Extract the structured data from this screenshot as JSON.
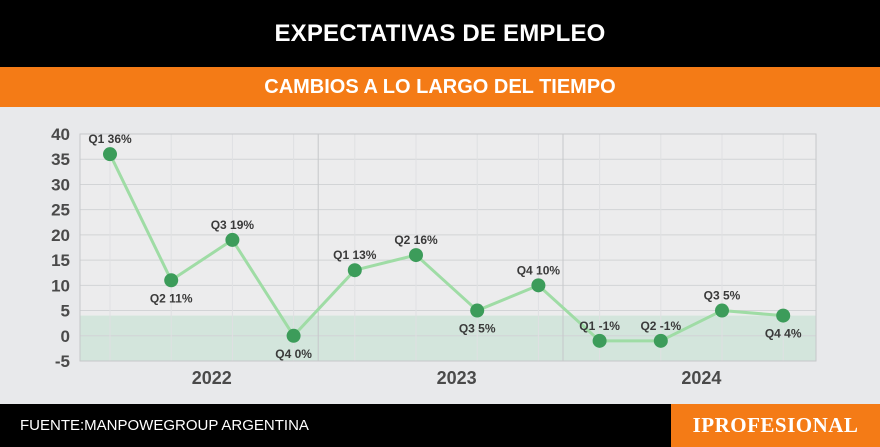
{
  "header": {
    "title": "EXPECTATIVAS DE EMPLEO",
    "subtitle": "CAMBIOS A LO LARGO DEL TIEMPO"
  },
  "footer": {
    "source": "FUENTE:MANPOWEGROUP ARGENTINA",
    "logo_text": "IPROFESIONAL"
  },
  "colors": {
    "title_bg": "#000000",
    "subtitle_bg": "#f47b16",
    "chart_bg": "#e8e9eb",
    "band": "#d3e5dc",
    "line": "#9fdca5",
    "marker": "#3c9c5a"
  },
  "chart_data": {
    "type": "line",
    "title": "",
    "xlabel": "",
    "ylabel": "",
    "ylim": [
      -5,
      40
    ],
    "yticks": [
      40,
      35,
      30,
      25,
      20,
      15,
      10,
      5,
      0,
      -5
    ],
    "grid": true,
    "shaded_band": [
      -5,
      4
    ],
    "groups": [
      "2022",
      "2023",
      "2024"
    ],
    "points": [
      {
        "year": "2022",
        "quarter": "Q1",
        "value": 36,
        "label": "Q1 36%",
        "label_pos": "above"
      },
      {
        "year": "2022",
        "quarter": "Q2",
        "value": 11,
        "label": "Q2 11%",
        "label_pos": "below"
      },
      {
        "year": "2022",
        "quarter": "Q3",
        "value": 19,
        "label": "Q3 19%",
        "label_pos": "above"
      },
      {
        "year": "2022",
        "quarter": "Q4",
        "value": 0,
        "label": "Q4 0%",
        "label_pos": "below"
      },
      {
        "year": "2023",
        "quarter": "Q1",
        "value": 13,
        "label": "Q1 13%",
        "label_pos": "above"
      },
      {
        "year": "2023",
        "quarter": "Q2",
        "value": 16,
        "label": "Q2 16%",
        "label_pos": "above"
      },
      {
        "year": "2023",
        "quarter": "Q3",
        "value": 5,
        "label": "Q3 5%",
        "label_pos": "below"
      },
      {
        "year": "2023",
        "quarter": "Q4",
        "value": 10,
        "label": "Q4 10%",
        "label_pos": "above"
      },
      {
        "year": "2024",
        "quarter": "Q1",
        "value": -1,
        "label": "Q1 -1%",
        "label_pos": "above"
      },
      {
        "year": "2024",
        "quarter": "Q2",
        "value": -1,
        "label": "Q2 -1%",
        "label_pos": "above"
      },
      {
        "year": "2024",
        "quarter": "Q3",
        "value": 5,
        "label": "Q3 5%",
        "label_pos": "above"
      },
      {
        "year": "2024",
        "quarter": "Q4",
        "value": 4,
        "label": "Q4 4%",
        "label_pos": "below"
      }
    ]
  }
}
